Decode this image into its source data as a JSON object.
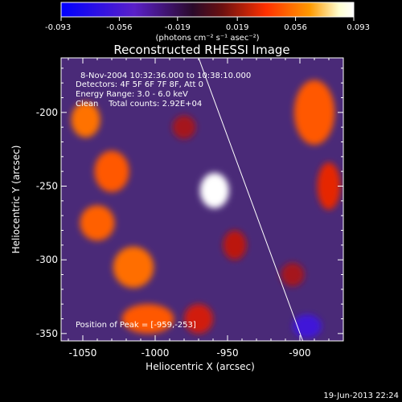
{
  "colorbar": {
    "min_label": "-0.093",
    "tick_labels": [
      "-0.093",
      "-0.056",
      "-0.019",
      "0.019",
      "0.056",
      "0.093"
    ],
    "tick_values": [
      -0.093,
      -0.056,
      -0.019,
      0.019,
      0.056,
      0.093
    ],
    "range": [
      -0.093,
      0.093
    ],
    "unit_label": "(photons cm⁻² s⁻¹ asec⁻²)",
    "colors": [
      "#0000ff",
      "#5a20c8",
      "#2a0a2a",
      "#6a1010",
      "#ff3000",
      "#ff9a00",
      "#ffffd0",
      "#ffffff"
    ]
  },
  "title": "Reconstructed RHESSI Image",
  "annotations": {
    "line1": "8-Nov-2004 10:32:36.000 to 10:38:10.000",
    "line2": "Detectors: 4F 5F 6F 7F 8F, Att 0",
    "line3": "Energy Range: 3.0 - 6.0 keV",
    "line4": "Clean    Total counts: 2.92E+04",
    "peak": "Position of Peak = [-959,-253]"
  },
  "footer": {
    "timestamp": "19-Jun-2013 22:24"
  },
  "chart_data": {
    "type": "heatmap",
    "title": "Reconstructed RHESSI Image",
    "xlabel": "Heliocentric X (arcsec)",
    "ylabel": "Heliocentric Y (arcsec)",
    "xlim": [
      -1065,
      -870
    ],
    "ylim": [
      -355,
      -163
    ],
    "xticks": [
      -1050,
      -1000,
      -950,
      -900
    ],
    "yticks": [
      -350,
      -300,
      -250,
      -200
    ],
    "xtick_labels": [
      "-1050",
      "-1000",
      "-950",
      "-900"
    ],
    "ytick_labels": [
      "-350",
      "-300",
      "-250",
      "-200"
    ],
    "peak": {
      "x": -959,
      "y": -253,
      "value": 0.093
    },
    "background_color": "#4a2a78",
    "sources": [
      {
        "x": -959,
        "y": -253,
        "rx": 10,
        "ry": 12,
        "value": 0.093
      },
      {
        "x": -1048,
        "y": -205,
        "rx": 10,
        "ry": 12,
        "value": 0.056
      },
      {
        "x": -1030,
        "y": -240,
        "rx": 12,
        "ry": 14,
        "value": 0.05
      },
      {
        "x": -1040,
        "y": -275,
        "rx": 12,
        "ry": 12,
        "value": 0.052
      },
      {
        "x": -1015,
        "y": -305,
        "rx": 14,
        "ry": 14,
        "value": 0.055
      },
      {
        "x": -1005,
        "y": -340,
        "rx": 18,
        "ry": 10,
        "value": 0.05
      },
      {
        "x": -970,
        "y": -340,
        "rx": 10,
        "ry": 10,
        "value": 0.03
      },
      {
        "x": -980,
        "y": -210,
        "rx": 8,
        "ry": 8,
        "value": 0.02
      },
      {
        "x": -945,
        "y": -290,
        "rx": 8,
        "ry": 10,
        "value": 0.025
      },
      {
        "x": -890,
        "y": -200,
        "rx": 14,
        "ry": 22,
        "value": 0.05
      },
      {
        "x": -880,
        "y": -250,
        "rx": 8,
        "ry": 16,
        "value": 0.035
      },
      {
        "x": -905,
        "y": -310,
        "rx": 8,
        "ry": 8,
        "value": 0.02
      },
      {
        "x": -895,
        "y": -345,
        "rx": 10,
        "ry": 8,
        "value": -0.06
      }
    ],
    "limb_line": [
      [
        -970,
        -163
      ],
      [
        -898,
        -355
      ]
    ]
  }
}
